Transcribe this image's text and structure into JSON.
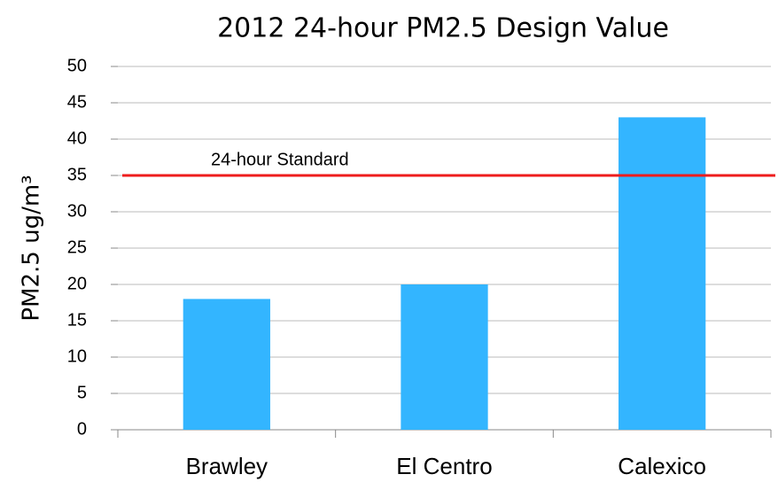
{
  "chart_data": {
    "type": "bar",
    "title": "2012 24-hour PM2.5 Design Value",
    "y_label": "PM2.5 ug/m³",
    "categories": [
      "Brawley",
      "El Centro",
      "Calexico"
    ],
    "values": [
      18,
      20,
      43
    ],
    "color": "#33b5ff",
    "ylim": [
      0,
      50
    ],
    "yticks": [
      0,
      5,
      10,
      15,
      20,
      25,
      30,
      35,
      40,
      45,
      50
    ],
    "grid": true,
    "reference_line": {
      "value": 35,
      "label": "24-hour Standard",
      "color": "#ee1c1c"
    }
  }
}
